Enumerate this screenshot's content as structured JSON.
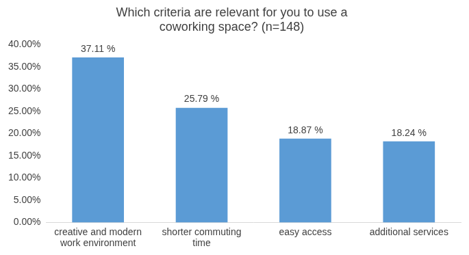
{
  "chart_data": {
    "type": "bar",
    "title": "Which criteria are relevant for you to use a coworking space? (n=148)",
    "categories": [
      "creative and modern work environment",
      "shorter commuting time",
      "easy access",
      "additional services"
    ],
    "values": [
      37.11,
      25.79,
      18.87,
      18.24
    ],
    "value_labels": [
      "37.11 %",
      "25.79 %",
      "18.87 %",
      "18.24 %"
    ],
    "data_labels": true,
    "color": "#5b9bd5",
    "ylim": [
      0,
      40
    ],
    "yticks": [
      {
        "value": 0,
        "label": "0.00%"
      },
      {
        "value": 5,
        "label": "5.00%"
      },
      {
        "value": 10,
        "label": "10.00%"
      },
      {
        "value": 15,
        "label": "15.00%"
      },
      {
        "value": 20,
        "label": "20.00%"
      },
      {
        "value": 25,
        "label": "25.00%"
      },
      {
        "value": 30,
        "label": "30.00%"
      },
      {
        "value": 35,
        "label": "35.00%"
      },
      {
        "value": 40,
        "label": "40.00%"
      }
    ],
    "grid": false
  }
}
